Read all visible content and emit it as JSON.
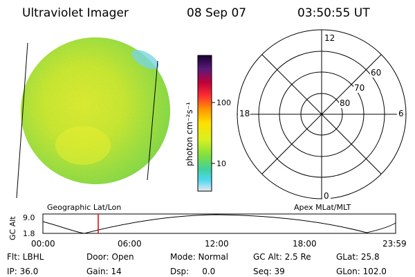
{
  "header": {
    "instrument": "Ultraviolet Imager",
    "date": "08 Sep 07",
    "time": "03:50:55 UT"
  },
  "colorbar": {
    "unit_label": "photon cm⁻²s⁻¹",
    "tick_labels": [
      "100",
      "10"
    ],
    "stops": [
      "#1a0030",
      "#5a1a7a",
      "#c0003a",
      "#ff3030",
      "#ff9900",
      "#ffe000",
      "#d8f020",
      "#7ee040",
      "#40d0a0",
      "#50d8f0",
      "#e8e8f0"
    ]
  },
  "polar": {
    "labels": {
      "top": "12",
      "left": "18",
      "right": "6",
      "bottom": "0"
    },
    "lat_labels": [
      "60",
      "70",
      "80"
    ]
  },
  "map_labels": {
    "left": "Geographic Lat/Lon",
    "right": "Apex MLat/MLT"
  },
  "altitude_plot": {
    "ylabel": "GC Alt",
    "y_ticks": [
      "9.0",
      "1.8"
    ],
    "x_ticks": [
      "00:00",
      "06:00",
      "12:00",
      "18:00",
      "23:59"
    ],
    "marker_color": "#e00000"
  },
  "status": {
    "flt": "Flt: LBHL",
    "door": "Door: Open",
    "mode": "Mode: Normal",
    "gc_alt": "GC Alt: 2.5 Re",
    "glat": "GLat:  25.8",
    "ip": "IP: 36.0",
    "gain": "Gain: 14",
    "dsp": "Dsp:     0.0",
    "seq": "Seq: 39",
    "glon": "GLon: 102.0"
  }
}
